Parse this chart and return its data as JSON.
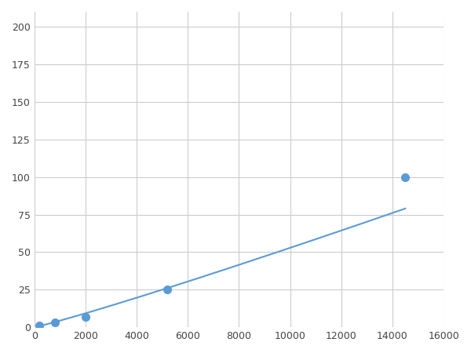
{
  "x": [
    200,
    500,
    800,
    2000,
    5200,
    14500
  ],
  "y": [
    1.0,
    2.0,
    3.0,
    7.0,
    25.0,
    100.0
  ],
  "marker_x": [
    200,
    800,
    2000,
    5200,
    14500
  ],
  "marker_y": [
    1.0,
    3.0,
    7.0,
    25.0,
    100.0
  ],
  "line_color": "#5b9bd5",
  "marker_color": "#5b9bd5",
  "marker_size": 7,
  "linewidth": 1.5,
  "xlim": [
    0,
    16000
  ],
  "ylim": [
    0,
    210
  ],
  "xticks": [
    0,
    2000,
    4000,
    6000,
    8000,
    10000,
    12000,
    14000,
    16000
  ],
  "yticks": [
    0,
    25,
    50,
    75,
    100,
    125,
    150,
    175,
    200
  ],
  "grid_color": "#cccccc",
  "background_color": "#ffffff",
  "figsize": [
    6.0,
    4.5
  ],
  "dpi": 100
}
